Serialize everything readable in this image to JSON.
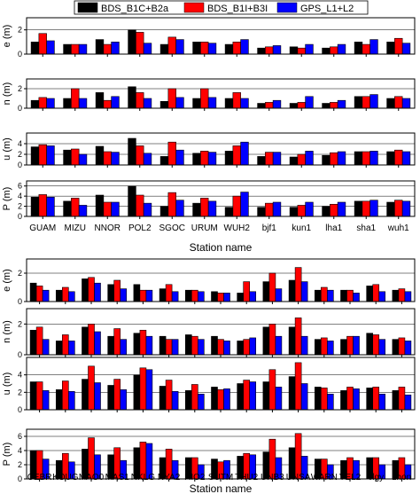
{
  "legend": {
    "position": "top",
    "items": [
      {
        "label": "BDS_B1C+B2a",
        "color": "#000000"
      },
      {
        "label": "BDS_B1I+B3I",
        "color": "#ff0000"
      },
      {
        "label": "GPS_L1+L2",
        "color": "#0000ff"
      }
    ]
  },
  "colors": [
    "#000000",
    "#ff0000",
    "#0000ff"
  ],
  "chart_data": [
    {
      "type": "bar",
      "xlabel": "Station name",
      "categories": [
        "GUAM",
        "MIZU",
        "NNOR",
        "POL2",
        "SGOC",
        "URUM",
        "WUH2",
        "bjf1",
        "kun1",
        "lha1",
        "sha1",
        "wuh1"
      ],
      "series_names": [
        "BDS_B1C+B2a",
        "BDS_B1I+B3I",
        "GPS_L1+L2"
      ],
      "panels": [
        {
          "ylabel": "e (m)",
          "ylim": [
            0,
            3
          ],
          "yticks": [
            0,
            2
          ],
          "series": [
            {
              "name": "BDS_B1C+B2a",
              "values": [
                1.0,
                0.8,
                1.2,
                2.0,
                0.8,
                1.0,
                0.8,
                0.5,
                0.6,
                0.5,
                1.0,
                1.0
              ]
            },
            {
              "name": "BDS_B1I+B3I",
              "values": [
                1.7,
                0.8,
                0.8,
                1.8,
                1.4,
                1.0,
                1.0,
                0.6,
                0.5,
                0.6,
                0.8,
                1.3
              ]
            },
            {
              "name": "GPS_L1+L2",
              "values": [
                1.1,
                0.8,
                1.0,
                0.9,
                1.2,
                0.9,
                1.2,
                0.7,
                0.8,
                0.8,
                1.2,
                0.9
              ]
            }
          ]
        },
        {
          "ylabel": "n (m)",
          "ylim": [
            0,
            3
          ],
          "yticks": [
            0,
            2
          ],
          "series": [
            {
              "name": "BDS_B1C+B2a",
              "values": [
                0.8,
                1.0,
                1.6,
                2.2,
                0.7,
                1.0,
                1.0,
                0.5,
                0.5,
                0.5,
                1.2,
                1.0
              ]
            },
            {
              "name": "BDS_B1I+B3I",
              "values": [
                1.1,
                2.0,
                0.8,
                1.6,
                2.0,
                2.0,
                1.6,
                0.6,
                0.6,
                0.6,
                1.2,
                1.2
              ]
            },
            {
              "name": "GPS_L1+L2",
              "values": [
                1.0,
                1.0,
                1.2,
                1.0,
                1.1,
                1.1,
                1.0,
                0.8,
                1.2,
                0.8,
                1.4,
                1.0
              ]
            }
          ]
        },
        {
          "ylabel": "u (m)",
          "ylim": [
            0,
            6
          ],
          "yticks": [
            0,
            2,
            4
          ],
          "series": [
            {
              "name": "BDS_B1C+B2a",
              "values": [
                3.4,
                2.8,
                3.5,
                5.0,
                1.6,
                2.2,
                2.6,
                1.6,
                1.5,
                1.8,
                2.5,
                2.5
              ]
            },
            {
              "name": "BDS_B1I+B3I",
              "values": [
                3.8,
                3.0,
                2.5,
                3.6,
                4.3,
                2.6,
                3.6,
                2.4,
                2.0,
                2.3,
                2.5,
                2.8
              ]
            },
            {
              "name": "GPS_L1+L2",
              "values": [
                3.6,
                2.0,
                2.4,
                2.2,
                2.8,
                2.4,
                4.3,
                2.4,
                2.6,
                2.5,
                2.6,
                2.5
              ]
            }
          ]
        },
        {
          "ylabel": "P (m)",
          "ylim": [
            0,
            7
          ],
          "yticks": [
            0,
            2,
            4,
            6
          ],
          "series": [
            {
              "name": "BDS_B1C+B2a",
              "values": [
                3.8,
                3.0,
                4.2,
                6.0,
                2.0,
                2.6,
                1.8,
                1.8,
                1.8,
                2.0,
                3.0,
                2.8
              ]
            },
            {
              "name": "BDS_B1I+B3I",
              "values": [
                4.3,
                3.6,
                2.8,
                4.2,
                4.7,
                3.6,
                4.0,
                2.6,
                2.2,
                2.4,
                3.0,
                3.2
              ]
            },
            {
              "name": "GPS_L1+L2",
              "values": [
                3.8,
                2.2,
                2.8,
                2.6,
                3.2,
                3.0,
                4.8,
                2.8,
                2.8,
                2.8,
                3.2,
                3.0
              ]
            }
          ]
        }
      ]
    },
    {
      "type": "bar",
      "xlabel": "Station name",
      "categories": [
        "CEBR",
        "KOUG",
        "MAO0",
        "MAS1",
        "NKLG",
        "NYA2",
        "RIO2",
        "SUTM",
        "THU2",
        "UNB3",
        "UNSA",
        "WARN",
        "YEL2",
        "clgy",
        "zhon"
      ],
      "series_names": [
        "BDS_B1C+B2a",
        "BDS_B1I+B3I",
        "GPS_L1+L2"
      ],
      "panels": [
        {
          "ylabel": "e (m)",
          "ylim": [
            0,
            3
          ],
          "yticks": [
            0,
            2
          ],
          "series": [
            {
              "name": "BDS_B1C+B2a",
              "values": [
                1.3,
                0.8,
                1.6,
                1.2,
                1.2,
                0.9,
                0.8,
                0.7,
                0.6,
                1.4,
                1.5,
                0.8,
                0.8,
                1.1,
                0.8
              ]
            },
            {
              "name": "BDS_B1I+B3I",
              "values": [
                1.1,
                1.0,
                1.7,
                1.5,
                0.8,
                1.2,
                0.8,
                0.6,
                1.4,
                2.0,
                2.4,
                1.0,
                0.8,
                1.2,
                0.9
              ]
            },
            {
              "name": "GPS_L1+L2",
              "values": [
                0.8,
                0.7,
                1.3,
                0.9,
                0.8,
                0.7,
                0.7,
                0.6,
                0.7,
                0.9,
                1.4,
                0.8,
                0.6,
                0.7,
                0.7
              ]
            }
          ]
        },
        {
          "ylabel": "n (m)",
          "ylim": [
            0,
            3
          ],
          "yticks": [
            0,
            2
          ],
          "series": [
            {
              "name": "BDS_B1C+B2a",
              "values": [
                1.6,
                0.9,
                1.8,
                1.2,
                1.4,
                1.2,
                1.3,
                1.2,
                0.9,
                1.8,
                1.8,
                1.0,
                1.0,
                1.4,
                1.0
              ]
            },
            {
              "name": "BDS_B1I+B3I",
              "values": [
                1.8,
                1.3,
                2.0,
                1.7,
                1.6,
                1.0,
                1.2,
                1.0,
                1.0,
                2.0,
                2.4,
                1.1,
                1.2,
                1.3,
                1.1
              ]
            },
            {
              "name": "GPS_L1+L2",
              "values": [
                1.0,
                0.9,
                1.5,
                1.0,
                1.2,
                1.0,
                1.0,
                0.9,
                1.1,
                1.2,
                1.2,
                0.9,
                1.2,
                1.0,
                0.9
              ]
            }
          ]
        },
        {
          "ylabel": "u (m)",
          "ylim": [
            0,
            6
          ],
          "yticks": [
            0,
            2,
            4
          ],
          "series": [
            {
              "name": "BDS_B1C+B2a",
              "values": [
                3.2,
                2.3,
                3.5,
                2.8,
                4.0,
                2.7,
                2.2,
                2.6,
                3.0,
                3.2,
                3.8,
                2.6,
                2.2,
                2.5,
                2.2
              ]
            },
            {
              "name": "BDS_B1I+B3I",
              "values": [
                3.2,
                3.3,
                5.0,
                3.5,
                4.8,
                3.4,
                2.9,
                2.3,
                3.4,
                4.6,
                5.4,
                2.5,
                2.6,
                2.6,
                2.6
              ]
            },
            {
              "name": "GPS_L1+L2",
              "values": [
                2.2,
                2.1,
                3.1,
                2.3,
                4.6,
                2.1,
                1.8,
                2.4,
                3.2,
                2.6,
                3.0,
                1.8,
                2.4,
                1.8,
                1.7
              ]
            }
          ]
        },
        {
          "ylabel": "P (m)",
          "ylim": [
            0,
            7
          ],
          "yticks": [
            0,
            2,
            4,
            6
          ],
          "series": [
            {
              "name": "BDS_B1C+B2a",
              "values": [
                4.0,
                2.6,
                4.2,
                3.4,
                4.4,
                3.0,
                3.0,
                2.8,
                3.2,
                3.8,
                4.4,
                2.8,
                2.6,
                3.0,
                2.6
              ]
            },
            {
              "name": "BDS_B1I+B3I",
              "values": [
                4.0,
                3.6,
                5.8,
                4.4,
                5.2,
                4.2,
                3.0,
                2.4,
                3.6,
                5.6,
                6.4,
                2.8,
                3.0,
                3.0,
                3.0
              ]
            },
            {
              "name": "GPS_L1+L2",
              "values": [
                2.8,
                2.4,
                3.4,
                2.6,
                5.0,
                2.6,
                2.0,
                2.6,
                3.4,
                3.0,
                3.2,
                2.0,
                2.6,
                2.0,
                2.0
              ]
            }
          ]
        }
      ]
    }
  ]
}
